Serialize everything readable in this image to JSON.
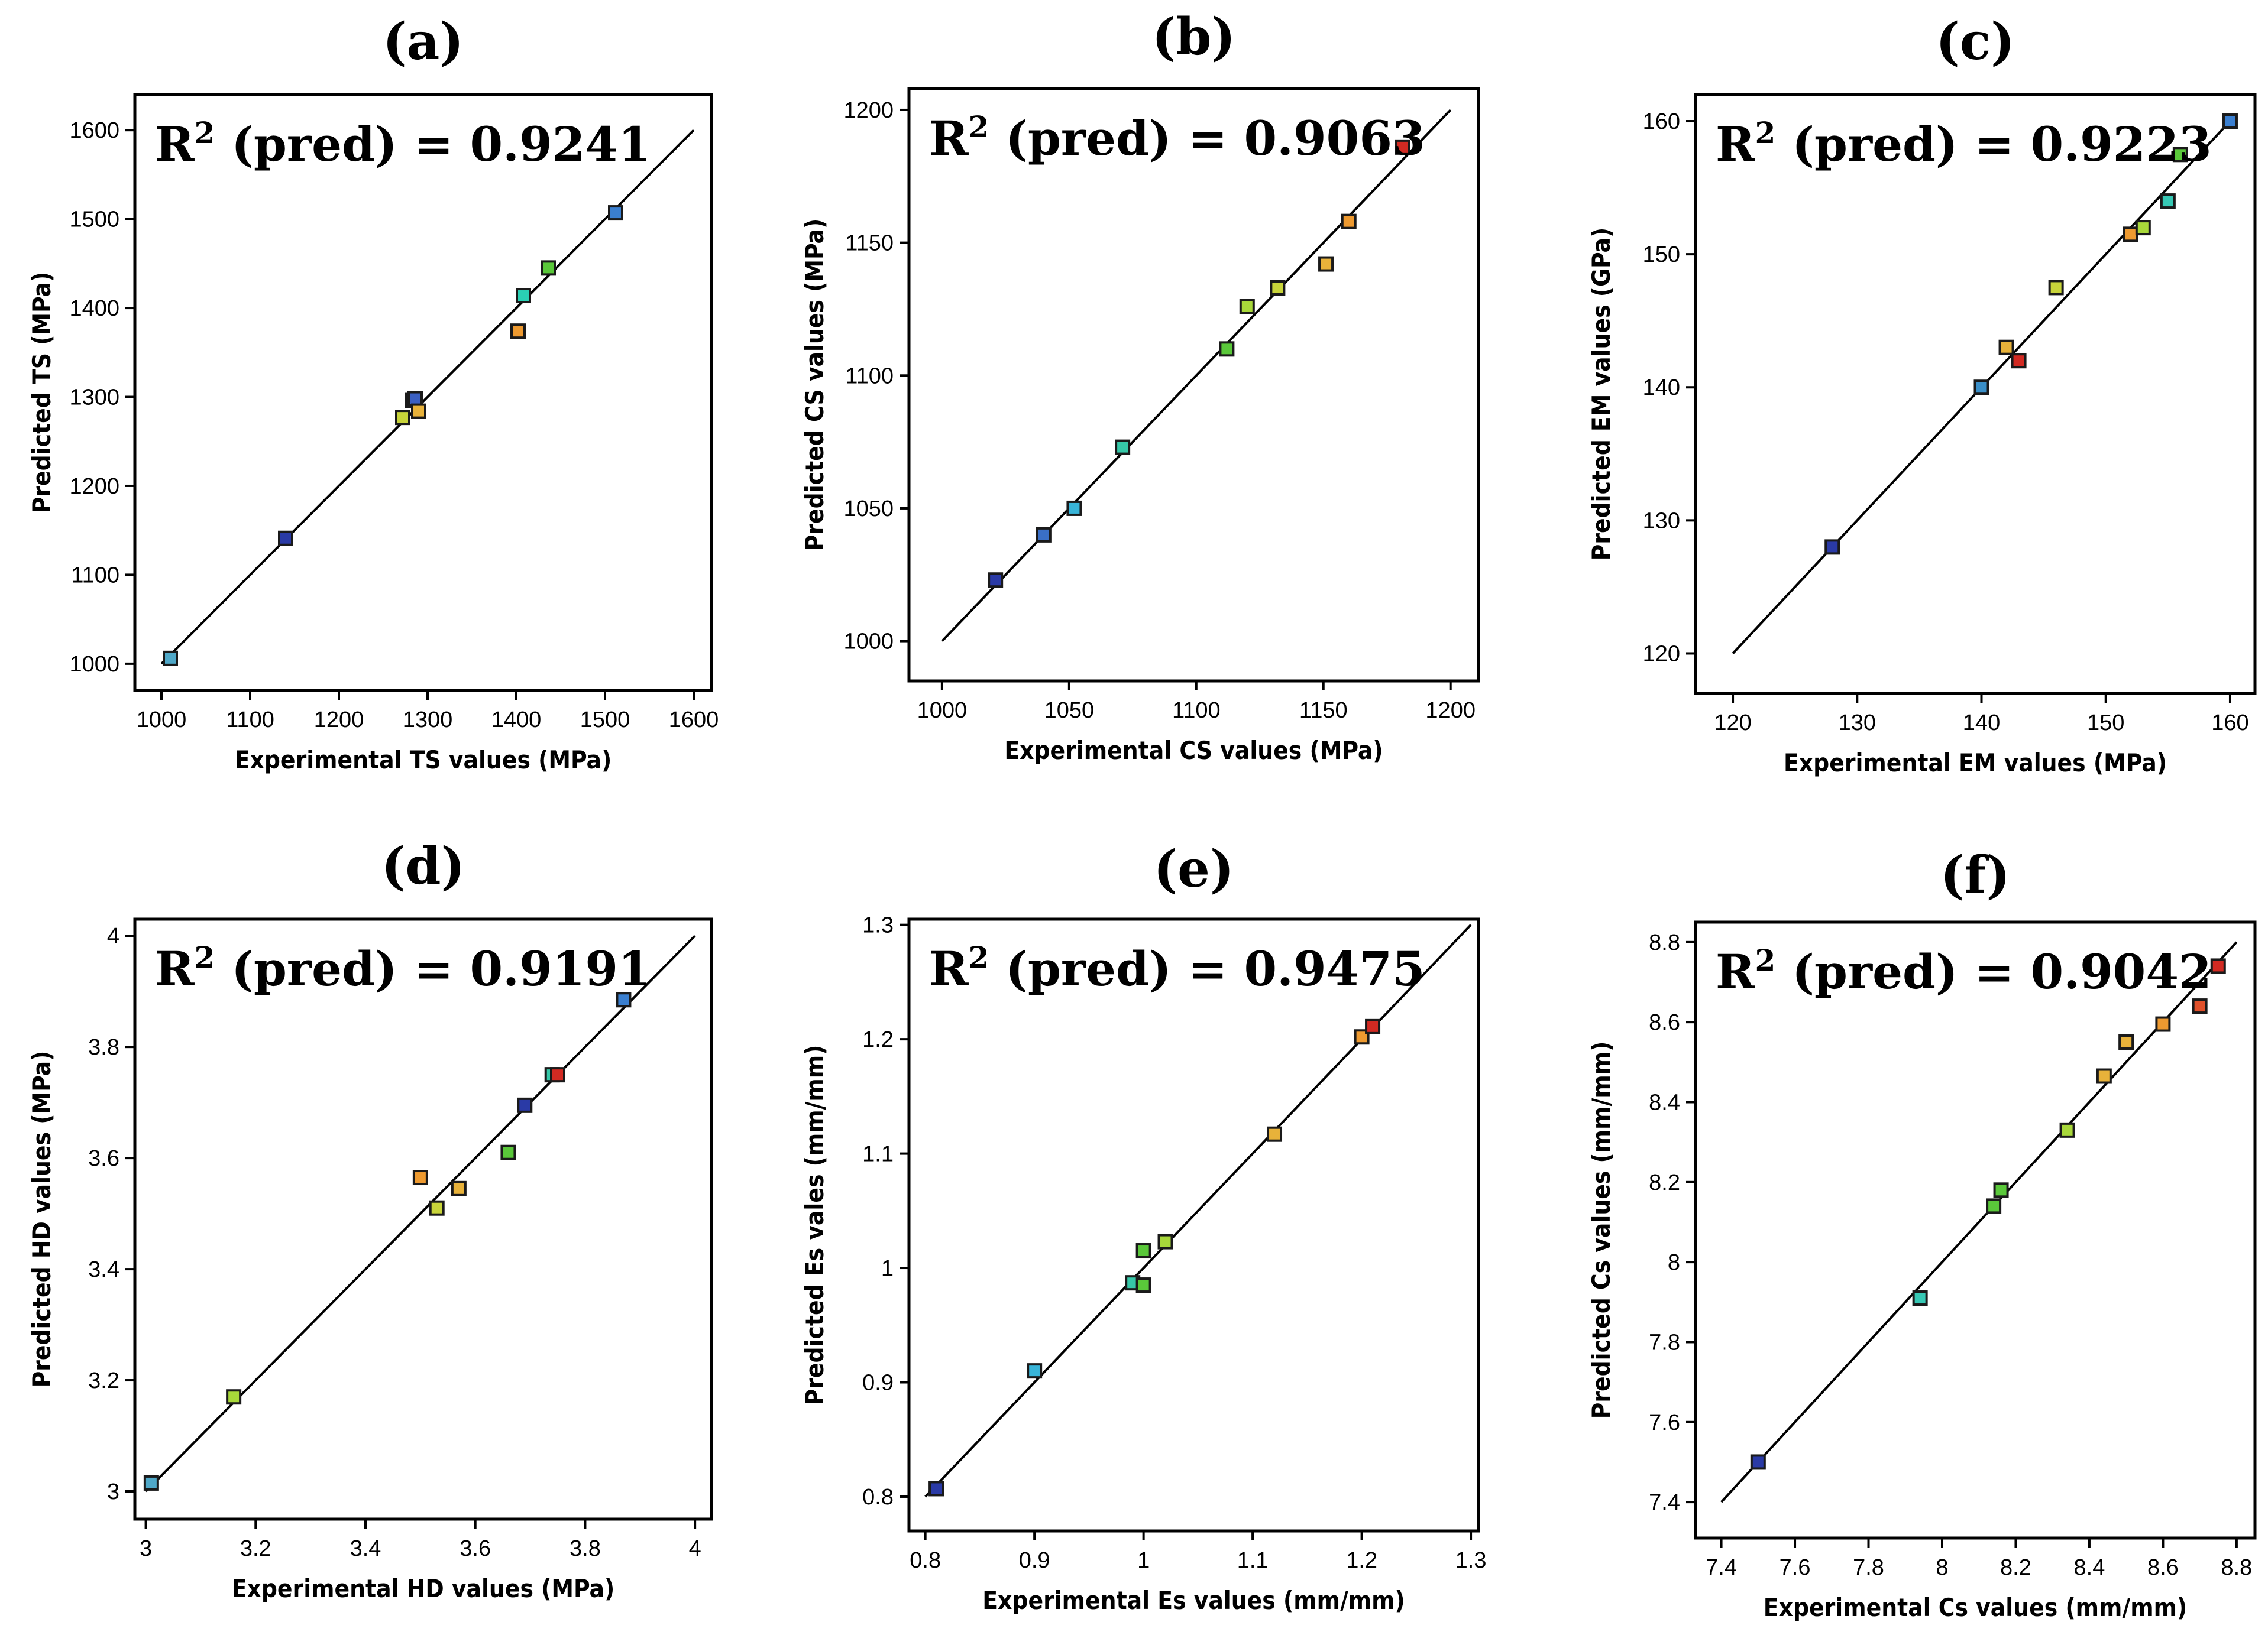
{
  "chart_data": [
    {
      "type": "scatter",
      "panel": "(a)",
      "r2_prefix": "R",
      "r2_sup": "2",
      "r2_text": " (pred) = 0.9241",
      "xlabel": "Experimental TS values (MPa)",
      "ylabel": "Predicted TS (MPa)",
      "xlim": [
        970,
        1620
      ],
      "ylim": [
        970,
        1640
      ],
      "xticks": [
        1000,
        1100,
        1200,
        1300,
        1400,
        1500,
        1600
      ],
      "xtick_labels": [
        "1000",
        "1100",
        "1200",
        "1300",
        "1400",
        "1500",
        "1600"
      ],
      "yticks": [
        1000,
        1100,
        1200,
        1300,
        1400,
        1500,
        1600
      ],
      "ytick_labels": [
        "1000",
        "1100",
        "1200",
        "1300",
        "1400",
        "1500",
        "1600"
      ],
      "line": [
        1000,
        1600
      ],
      "points": [
        {
          "x": 1010,
          "y": 1006,
          "color": "#4fa8c8"
        },
        {
          "x": 1140,
          "y": 1141,
          "color": "#2a3aa6"
        },
        {
          "x": 1272,
          "y": 1277,
          "color": "#c8d43a"
        },
        {
          "x": 1283,
          "y": 1296,
          "color": "#d22a22"
        },
        {
          "x": 1286,
          "y": 1298,
          "color": "#3a5fc2"
        },
        {
          "x": 1290,
          "y": 1284,
          "color": "#e8b23a"
        },
        {
          "x": 1402,
          "y": 1374,
          "color": "#ee9a30"
        },
        {
          "x": 1408,
          "y": 1414,
          "color": "#2ad0b4"
        },
        {
          "x": 1436,
          "y": 1445,
          "color": "#5ac83a"
        },
        {
          "x": 1512,
          "y": 1507,
          "color": "#3a7fd0"
        }
      ]
    },
    {
      "type": "scatter",
      "panel": "(b)",
      "r2_prefix": "R",
      "r2_sup": "2",
      "r2_text": " (pred) = 0.9063",
      "xlabel": "Experimental CS values (MPa)",
      "ylabel": "Predicted CS values (MPa)",
      "xlim": [
        987,
        1211
      ],
      "ylim": [
        985,
        1208
      ],
      "xticks": [
        1000,
        1050,
        1100,
        1150,
        1200
      ],
      "xtick_labels": [
        "1000",
        "1050",
        "1100",
        "1150",
        "1200"
      ],
      "yticks": [
        1000,
        1050,
        1100,
        1150,
        1200
      ],
      "ytick_labels": [
        "1000",
        "1050",
        "1100",
        "1150",
        "1200"
      ],
      "line": [
        1000,
        1200
      ],
      "points": [
        {
          "x": 1021,
          "y": 1023,
          "color": "#2a3aa6"
        },
        {
          "x": 1040,
          "y": 1040,
          "color": "#3a6fc6"
        },
        {
          "x": 1052,
          "y": 1050,
          "color": "#38b4d8"
        },
        {
          "x": 1071,
          "y": 1073,
          "color": "#36c8a8"
        },
        {
          "x": 1112,
          "y": 1110,
          "color": "#5ac83a"
        },
        {
          "x": 1120,
          "y": 1126,
          "color": "#a8d83a"
        },
        {
          "x": 1132,
          "y": 1133,
          "color": "#c8d43a"
        },
        {
          "x": 1151,
          "y": 1142,
          "color": "#e8b23a"
        },
        {
          "x": 1160,
          "y": 1158,
          "color": "#ee9a30"
        },
        {
          "x": 1181,
          "y": 1186,
          "color": "#d22a22"
        }
      ]
    },
    {
      "type": "scatter",
      "panel": "(c)",
      "r2_prefix": "R",
      "r2_sup": "2",
      "r2_text": " (pred) = 0.9223",
      "xlabel": "Experimental EM values (MPa)",
      "ylabel": "Predicted EM values (GPa)",
      "xlim": [
        117,
        162
      ],
      "ylim": [
        117,
        162
      ],
      "xticks": [
        120,
        130,
        140,
        150,
        160
      ],
      "xtick_labels": [
        "120",
        "130",
        "140",
        "150",
        "160"
      ],
      "yticks": [
        120,
        130,
        140,
        150,
        160
      ],
      "ytick_labels": [
        "120",
        "130",
        "140",
        "150",
        "160"
      ],
      "line": [
        120,
        160
      ],
      "points": [
        {
          "x": 128,
          "y": 128,
          "color": "#2a3aa6"
        },
        {
          "x": 140,
          "y": 140,
          "color": "#3a8fc8"
        },
        {
          "x": 142,
          "y": 143,
          "color": "#e8b23a"
        },
        {
          "x": 143,
          "y": 142,
          "color": "#d22a22"
        },
        {
          "x": 146,
          "y": 147.5,
          "color": "#c8d43a"
        },
        {
          "x": 152,
          "y": 151.5,
          "color": "#ee9a30"
        },
        {
          "x": 153,
          "y": 152,
          "color": "#a8d83a"
        },
        {
          "x": 155,
          "y": 154,
          "color": "#36c8b4"
        },
        {
          "x": 156,
          "y": 157.5,
          "color": "#5ac83a"
        },
        {
          "x": 160,
          "y": 160,
          "color": "#3a7fd0"
        }
      ]
    },
    {
      "type": "scatter",
      "panel": "(d)",
      "r2_prefix": "R",
      "r2_sup": "2",
      "r2_text": " (pred) = 0.9191",
      "xlabel": "Experimental HD values (MPa)",
      "ylabel": "Predicted HD values (MPa)",
      "xlim": [
        2.98,
        4.03
      ],
      "ylim": [
        2.95,
        4.03
      ],
      "xticks": [
        3,
        3.2,
        3.4,
        3.6,
        3.8,
        4
      ],
      "xtick_labels": [
        "3",
        "3.2",
        "3.4",
        "3.6",
        "3.8",
        "4"
      ],
      "yticks": [
        3,
        3.2,
        3.4,
        3.6,
        3.8,
        4
      ],
      "ytick_labels": [
        "3",
        "3.2",
        "3.4",
        "3.6",
        "3.8",
        "4"
      ],
      "line": [
        3,
        4
      ],
      "points": [
        {
          "x": 3.01,
          "y": 3.015,
          "color": "#4fa8c8"
        },
        {
          "x": 3.16,
          "y": 3.17,
          "color": "#a8d83a"
        },
        {
          "x": 3.5,
          "y": 3.565,
          "color": "#ee9a30"
        },
        {
          "x": 3.53,
          "y": 3.51,
          "color": "#c8d43a"
        },
        {
          "x": 3.57,
          "y": 3.545,
          "color": "#e8b23a"
        },
        {
          "x": 3.66,
          "y": 3.61,
          "color": "#5ac83a"
        },
        {
          "x": 3.69,
          "y": 3.695,
          "color": "#2a3aa6"
        },
        {
          "x": 3.74,
          "y": 3.75,
          "color": "#36c8a8"
        },
        {
          "x": 3.75,
          "y": 3.75,
          "color": "#d22a22"
        },
        {
          "x": 3.87,
          "y": 3.885,
          "color": "#3a7fd0"
        }
      ]
    },
    {
      "type": "scatter",
      "panel": "(e)",
      "r2_prefix": "R",
      "r2_sup": "2",
      "r2_text": " (pred) = 0.9475",
      "xlabel": "Experimental Es values (mm/mm)",
      "ylabel": "Predicted Es vales (mm/mm)",
      "xlim": [
        0.785,
        1.307
      ],
      "ylim": [
        0.77,
        1.305
      ],
      "xticks": [
        0.8,
        0.9,
        1,
        1.1,
        1.2,
        1.3
      ],
      "xtick_labels": [
        "0.8",
        "0.9",
        "1",
        "1.1",
        "1.2",
        "1.3"
      ],
      "yticks": [
        0.8,
        0.9,
        1,
        1.1,
        1.2,
        1.3
      ],
      "ytick_labels": [
        "0.8",
        "0.9",
        "1",
        "1.1",
        "1.2",
        "1.3"
      ],
      "line": [
        0.8,
        1.3
      ],
      "points": [
        {
          "x": 0.81,
          "y": 0.807,
          "color": "#2a3aa6"
        },
        {
          "x": 0.9,
          "y": 0.91,
          "color": "#38b4d8"
        },
        {
          "x": 0.99,
          "y": 0.987,
          "color": "#36c8a8"
        },
        {
          "x": 1.0,
          "y": 0.985,
          "color": "#5ac83a"
        },
        {
          "x": 1.0,
          "y": 1.015,
          "color": "#5ac83a"
        },
        {
          "x": 1.02,
          "y": 1.023,
          "color": "#a8d83a"
        },
        {
          "x": 1.12,
          "y": 1.117,
          "color": "#e8b23a"
        },
        {
          "x": 1.2,
          "y": 1.202,
          "color": "#ee9a30"
        },
        {
          "x": 1.21,
          "y": 1.211,
          "color": "#d22a22"
        }
      ]
    },
    {
      "type": "scatter",
      "panel": "(f)",
      "r2_prefix": "R",
      "r2_sup": "2",
      "r2_text": " (pred) = 0.9042",
      "xlabel": "Experimental Cs values (mm/mm)",
      "ylabel": "Predicted Cs values (mm/mm)",
      "xlim": [
        7.33,
        8.85
      ],
      "ylim": [
        7.31,
        8.85
      ],
      "xticks": [
        7.4,
        7.6,
        7.8,
        8,
        8.2,
        8.4,
        8.6,
        8.8
      ],
      "xtick_labels": [
        "7.4",
        "7.6",
        "7.8",
        "8",
        "8.2",
        "8.4",
        "8.6",
        "8.8"
      ],
      "yticks": [
        7.4,
        7.6,
        7.8,
        8,
        8.2,
        8.4,
        8.6,
        8.8
      ],
      "ytick_labels": [
        "7.4",
        "7.6",
        "7.8",
        "8",
        "8.2",
        "8.4",
        "8.6",
        "8.8"
      ],
      "line": [
        7.4,
        8.8
      ],
      "points": [
        {
          "x": 7.5,
          "y": 7.5,
          "color": "#2a3aa6"
        },
        {
          "x": 7.94,
          "y": 7.91,
          "color": "#36c8b4"
        },
        {
          "x": 8.14,
          "y": 8.14,
          "color": "#5ac83a"
        },
        {
          "x": 8.16,
          "y": 8.18,
          "color": "#5ac83a"
        },
        {
          "x": 8.34,
          "y": 8.33,
          "color": "#a8d83a"
        },
        {
          "x": 8.44,
          "y": 8.465,
          "color": "#e8b23a"
        },
        {
          "x": 8.5,
          "y": 8.55,
          "color": "#e8b23a"
        },
        {
          "x": 8.6,
          "y": 8.595,
          "color": "#ee9a30"
        },
        {
          "x": 8.7,
          "y": 8.64,
          "color": "#e0502a"
        },
        {
          "x": 8.75,
          "y": 8.74,
          "color": "#d22a22"
        }
      ]
    }
  ]
}
